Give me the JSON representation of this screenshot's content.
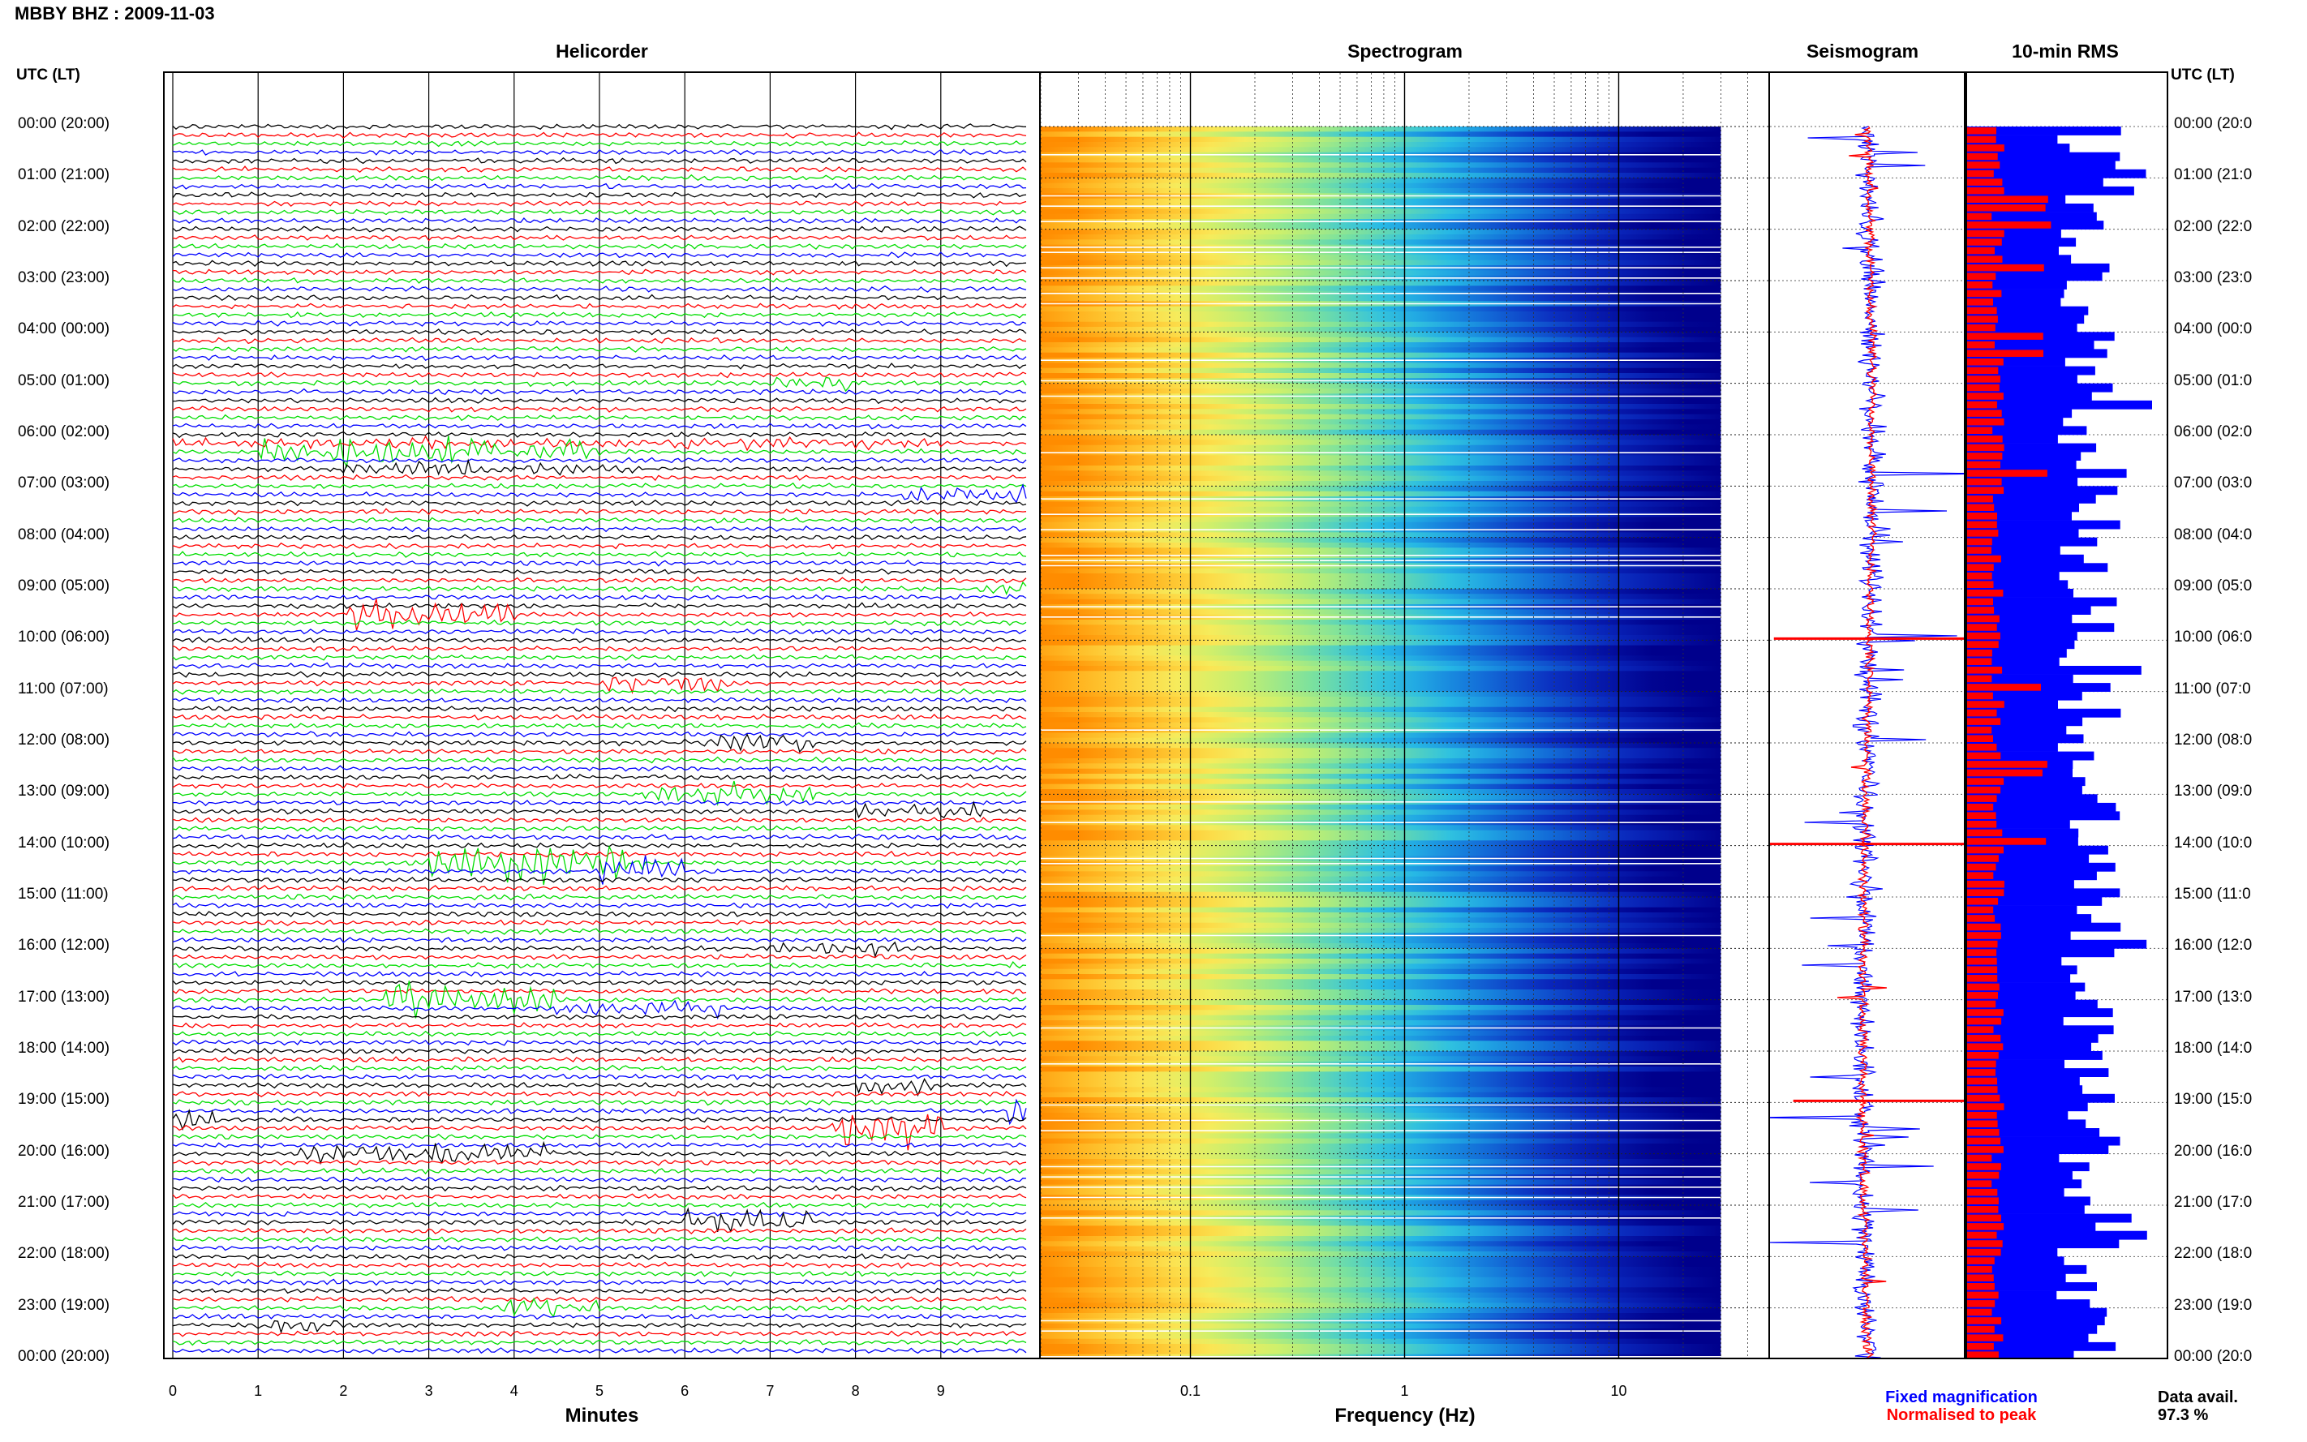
{
  "header": {
    "title": "MBBY BHZ : 2009-11-03"
  },
  "panels": {
    "helicorder": "Helicorder",
    "spectrogram": "Spectrogram",
    "seismogram": "Seismogram",
    "rms": "10-min RMS"
  },
  "axis": {
    "utc_label": "UTC (LT)",
    "minutes_label": "Minutes",
    "frequency_label": "Frequency (Hz)"
  },
  "time_labels": [
    "00:00 (20:00)",
    "01:00 (21:00)",
    "02:00 (22:00)",
    "03:00 (23:00)",
    "04:00 (00:00)",
    "05:00 (01:00)",
    "06:00 (02:00)",
    "07:00 (03:00)",
    "08:00 (04:00)",
    "09:00 (05:00)",
    "10:00 (06:00)",
    "11:00 (07:00)",
    "12:00 (08:00)",
    "13:00 (09:00)",
    "14:00 (10:00)",
    "15:00 (11:00)",
    "16:00 (12:00)",
    "17:00 (13:00)",
    "18:00 (14:00)",
    "19:00 (15:00)",
    "20:00 (16:00)",
    "21:00 (17:00)",
    "22:00 (18:00)",
    "23:00 (19:00)",
    "00:00 (20:00)"
  ],
  "right_time_labels": [
    "00:00 (20:0",
    "01:00 (21:0",
    "02:00 (22:0",
    "03:00 (23:0",
    "04:00 (00:0",
    "05:00 (01:0",
    "06:00 (02:0",
    "07:00 (03:0",
    "08:00 (04:0",
    "09:00 (05:0",
    "10:00 (06:0",
    "11:00 (07:0",
    "12:00 (08:0",
    "13:00 (09:0",
    "14:00 (10:0",
    "15:00 (11:0",
    "16:00 (12:0",
    "17:00 (13:0",
    "18:00 (14:0",
    "19:00 (15:0",
    "20:00 (16:0",
    "21:00 (17:0",
    "22:00 (18:0",
    "23:00 (19:0",
    "00:00 (20:0"
  ],
  "legend": {
    "fixed": "Fixed magnification",
    "normalised": "Normalised to peak",
    "data_avail_label": "Data avail.",
    "data_avail_value": "97.3 %"
  },
  "colors": {
    "trace_cycle": [
      "#000000",
      "#ff0000",
      "#00dd00",
      "#0000ff"
    ],
    "fixed": "#0000ff",
    "normalised": "#ff0000"
  },
  "chart_data": [
    {
      "type": "line",
      "name": "Helicorder",
      "x_label": "Minutes",
      "x_ticks": [
        "0",
        "1",
        "2",
        "3",
        "4",
        "5",
        "6",
        "7",
        "8",
        "9"
      ],
      "xlim": [
        0,
        10
      ],
      "traces_per_hour": 6,
      "hours": 24
    },
    {
      "type": "heatmap",
      "name": "Spectrogram",
      "x_label": "Frequency (Hz)",
      "x_ticks": [
        "0.1",
        "1",
        "10"
      ],
      "x_scale": "log",
      "xlim": [
        0.02,
        50
      ]
    },
    {
      "type": "line",
      "name": "Seismogram",
      "series": [
        "Fixed magnification",
        "Normalised to peak"
      ]
    },
    {
      "type": "bar",
      "name": "10-min RMS",
      "series": [
        "Fixed magnification",
        "Normalised to peak"
      ],
      "bins": 144
    }
  ]
}
